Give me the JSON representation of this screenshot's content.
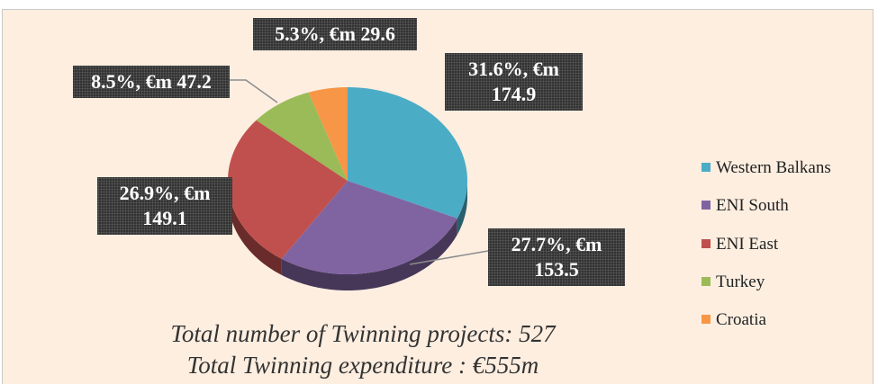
{
  "chart_data": {
    "type": "pie",
    "categories": [
      "Western Balkans",
      "ENI South",
      "ENI East",
      "Turkey",
      "Croatia"
    ],
    "values": [
      31.6,
      27.7,
      26.9,
      8.5,
      5.3
    ],
    "value_labels": [
      "31.6%, €m 174.9",
      "27.7%, €m 153.5",
      "26.9%, €m 149.1",
      "8.5%, €m 47.2",
      "5.3%, €m 29.6"
    ],
    "colors": [
      "#4bacc6",
      "#8064a2",
      "#c0504d",
      "#9bbb59",
      "#f79646"
    ],
    "legend": "right",
    "annotations": [
      "Total number of Twinning projects: 527",
      "Total Twinning expenditure : €555m"
    ]
  }
}
